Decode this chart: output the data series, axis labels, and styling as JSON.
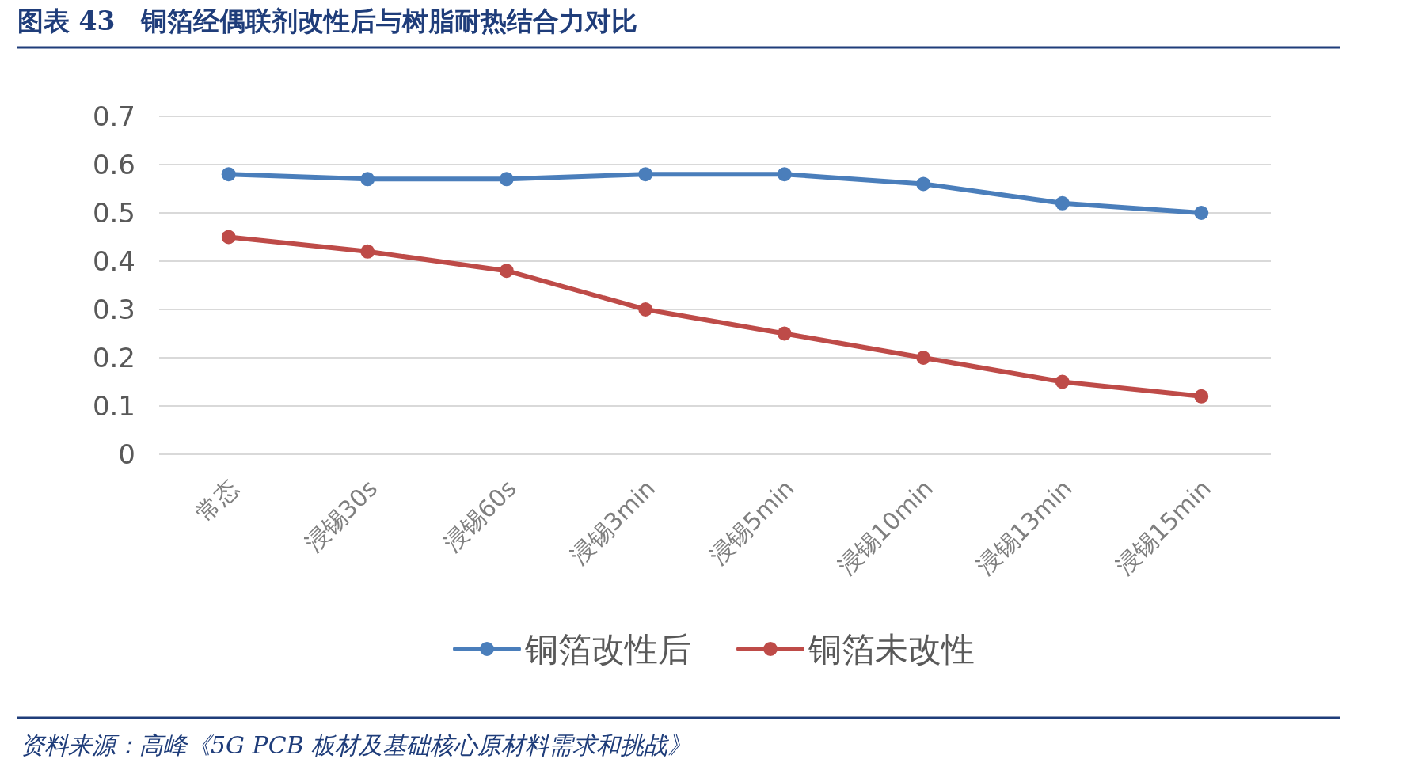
{
  "chart_data": {
    "type": "line",
    "title": "图表 43　铜箔经偶联剂改性后与树脂耐热结合力对比",
    "categories": [
      "常态",
      "浸锡30s",
      "浸锡60s",
      "浸锡3min",
      "浸锡5min",
      "浸锡10min",
      "浸锡13min",
      "浸锡15min"
    ],
    "series": [
      {
        "name": "铜箔改性后",
        "color": "#4a7ebb",
        "values": [
          0.58,
          0.57,
          0.57,
          0.58,
          0.58,
          0.56,
          0.52,
          0.5
        ]
      },
      {
        "name": "铜箔未改性",
        "color": "#be4b48",
        "values": [
          0.45,
          0.42,
          0.38,
          0.3,
          0.25,
          0.2,
          0.15,
          0.12
        ]
      }
    ],
    "ylim": [
      0,
      0.7
    ],
    "yticks": [
      0,
      0.1,
      0.2,
      0.3,
      0.4,
      0.5,
      0.6,
      0.7
    ],
    "grid": "y",
    "legend": "bottom",
    "marker": "circle",
    "line_style": "solid",
    "annotations": [
      "资料来源：高峰《5G PCB 板材及基础核心原材料需求和挑战》"
    ]
  }
}
